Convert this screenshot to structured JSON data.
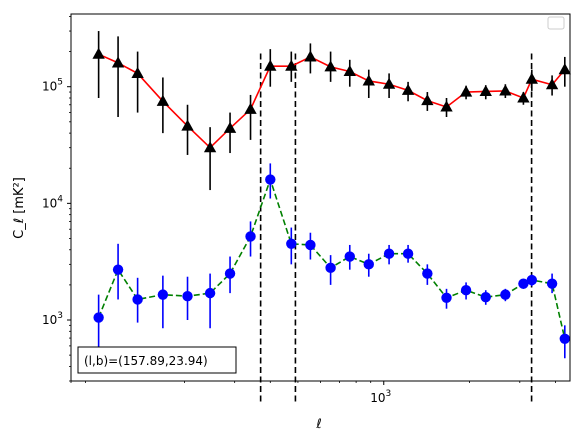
{
  "chart_data": {
    "type": "scatter",
    "xscale": "log",
    "yscale": "log",
    "xlim": [
      80,
      4500
    ],
    "ylim": [
      300,
      420000
    ],
    "xlabel": "ℓ",
    "ylabel": "C_ℓ [mK²]",
    "x_ticks": [
      {
        "value": 1000,
        "base": "10",
        "exp": "3"
      }
    ],
    "y_ticks": [
      {
        "value": 1000,
        "base": "10",
        "exp": "3"
      },
      {
        "value": 10000,
        "base": "10",
        "exp": "4"
      },
      {
        "value": 100000,
        "base": "10",
        "exp": "5"
      }
    ],
    "annotation": "(l,b)=(157.89,23.94)",
    "vlines": [
      370,
      490,
      3300
    ],
    "vline_range": [
      200,
      200000
    ],
    "legend": {
      "placement": "upper right",
      "entries": []
    },
    "series": [
      {
        "marker": "triangle",
        "marker_color": "#000000",
        "line_color": "#ff0000",
        "line_style": "solid",
        "points": [
          {
            "x": 100,
            "y": 190000,
            "lo": 80000,
            "hi": 300000
          },
          {
            "x": 117,
            "y": 160000,
            "lo": 55000,
            "hi": 270000
          },
          {
            "x": 137,
            "y": 130000,
            "lo": 60000,
            "hi": 200000
          },
          {
            "x": 168,
            "y": 75000,
            "lo": 40000,
            "hi": 120000
          },
          {
            "x": 205,
            "y": 46000,
            "lo": 26000,
            "hi": 70000
          },
          {
            "x": 246,
            "y": 30000,
            "lo": 13000,
            "hi": 45000
          },
          {
            "x": 289,
            "y": 44000,
            "lo": 27000,
            "hi": 60000
          },
          {
            "x": 341,
            "y": 64000,
            "lo": 35000,
            "hi": 85000
          },
          {
            "x": 400,
            "y": 150000,
            "lo": 100000,
            "hi": 210000
          },
          {
            "x": 474,
            "y": 150000,
            "lo": 110000,
            "hi": 200000
          },
          {
            "x": 553,
            "y": 180000,
            "lo": 130000,
            "hi": 235000
          },
          {
            "x": 651,
            "y": 148000,
            "lo": 110000,
            "hi": 200000
          },
          {
            "x": 760,
            "y": 135000,
            "lo": 100000,
            "hi": 170000
          },
          {
            "x": 886,
            "y": 112000,
            "lo": 80000,
            "hi": 140000
          },
          {
            "x": 1044,
            "y": 105000,
            "lo": 80000,
            "hi": 130000
          },
          {
            "x": 1217,
            "y": 93000,
            "lo": 75000,
            "hi": 110000
          },
          {
            "x": 1422,
            "y": 76000,
            "lo": 62000,
            "hi": 90000
          },
          {
            "x": 1660,
            "y": 67000,
            "lo": 55000,
            "hi": 80000
          },
          {
            "x": 1944,
            "y": 90000,
            "lo": 78000,
            "hi": 102000
          },
          {
            "x": 2279,
            "y": 91000,
            "lo": 78000,
            "hi": 103000
          },
          {
            "x": 2670,
            "y": 92000,
            "lo": 80000,
            "hi": 105000
          },
          {
            "x": 3089,
            "y": 80000,
            "lo": 70000,
            "hi": 90000
          },
          {
            "x": 3306,
            "y": 116000,
            "lo": 92000,
            "hi": 140000
          },
          {
            "x": 3894,
            "y": 104000,
            "lo": 84000,
            "hi": 125000
          },
          {
            "x": 4315,
            "y": 140000,
            "lo": 100000,
            "hi": 180000
          }
        ]
      },
      {
        "marker": "circle",
        "marker_color": "#0000ff",
        "line_color": "#008000",
        "line_style": "dashed",
        "points": [
          {
            "x": 100,
            "y": 1050,
            "lo": 560,
            "hi": 1650
          },
          {
            "x": 117,
            "y": 2700,
            "lo": 1500,
            "hi": 4500
          },
          {
            "x": 137,
            "y": 1500,
            "lo": 950,
            "hi": 2300
          },
          {
            "x": 168,
            "y": 1650,
            "lo": 850,
            "hi": 2400
          },
          {
            "x": 205,
            "y": 1600,
            "lo": 1000,
            "hi": 2350
          },
          {
            "x": 246,
            "y": 1700,
            "lo": 850,
            "hi": 2500
          },
          {
            "x": 289,
            "y": 2500,
            "lo": 1700,
            "hi": 3500
          },
          {
            "x": 341,
            "y": 5200,
            "lo": 3500,
            "hi": 7000
          },
          {
            "x": 400,
            "y": 16000,
            "lo": 11000,
            "hi": 22000
          },
          {
            "x": 474,
            "y": 4500,
            "lo": 3000,
            "hi": 6200
          },
          {
            "x": 553,
            "y": 4400,
            "lo": 3300,
            "hi": 5600
          },
          {
            "x": 651,
            "y": 2800,
            "lo": 2000,
            "hi": 3600
          },
          {
            "x": 760,
            "y": 3500,
            "lo": 2700,
            "hi": 4400
          },
          {
            "x": 886,
            "y": 3000,
            "lo": 2350,
            "hi": 3700
          },
          {
            "x": 1044,
            "y": 3700,
            "lo": 3000,
            "hi": 4400
          },
          {
            "x": 1217,
            "y": 3700,
            "lo": 3100,
            "hi": 4400
          },
          {
            "x": 1422,
            "y": 2500,
            "lo": 2000,
            "hi": 3000
          },
          {
            "x": 1660,
            "y": 1550,
            "lo": 1250,
            "hi": 1850
          },
          {
            "x": 1944,
            "y": 1800,
            "lo": 1500,
            "hi": 2100
          },
          {
            "x": 2279,
            "y": 1570,
            "lo": 1350,
            "hi": 1800
          },
          {
            "x": 2670,
            "y": 1650,
            "lo": 1450,
            "hi": 1850
          },
          {
            "x": 3089,
            "y": 2050,
            "lo": 1850,
            "hi": 2250
          },
          {
            "x": 3306,
            "y": 2200,
            "lo": 1950,
            "hi": 2450
          },
          {
            "x": 3894,
            "y": 2050,
            "lo": 1700,
            "hi": 2500
          },
          {
            "x": 4315,
            "y": 690,
            "lo": 470,
            "hi": 900
          }
        ]
      }
    ]
  }
}
